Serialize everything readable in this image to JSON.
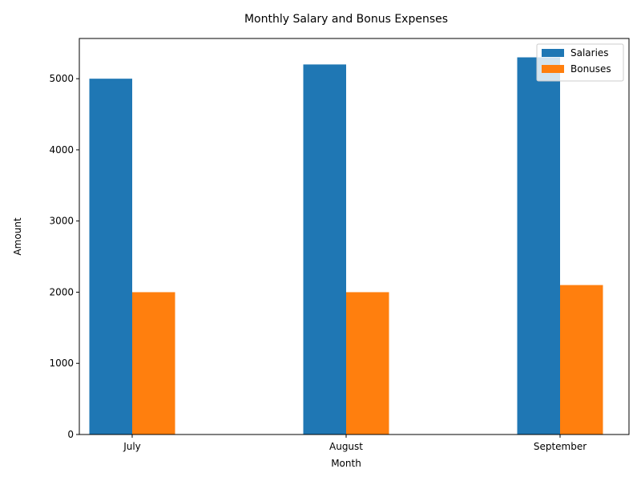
{
  "chart_data": {
    "type": "bar",
    "title": "Monthly Salary and Bonus Expenses",
    "xlabel": "Month",
    "ylabel": "Amount",
    "categories": [
      "July",
      "August",
      "September"
    ],
    "series": [
      {
        "name": "Salaries",
        "values": [
          5000,
          5200,
          5300
        ],
        "color": "#1f77b4"
      },
      {
        "name": "Bonuses",
        "values": [
          2000,
          2000,
          2100
        ],
        "color": "#ff7f0e"
      }
    ],
    "ylim": [
      0,
      5565
    ],
    "yticks": [
      "0",
      "1000",
      "2000",
      "3000",
      "4000",
      "5000"
    ],
    "grid": false,
    "legend_position": "top-right"
  }
}
